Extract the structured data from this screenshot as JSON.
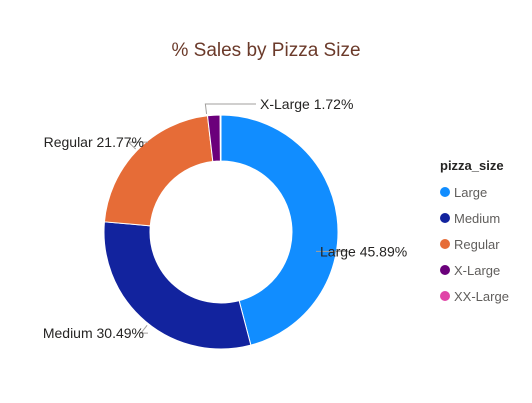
{
  "chart_data": {
    "type": "donut",
    "title": "% Sales by Pizza Size",
    "legend_title": "pizza_size",
    "legend_position": "right",
    "slices": [
      {
        "label": "Large",
        "value": 45.89,
        "display": "45.89%",
        "color": "#118dff"
      },
      {
        "label": "Medium",
        "value": 30.49,
        "display": "30.49%",
        "color": "#12239e"
      },
      {
        "label": "Regular",
        "value": 21.77,
        "display": "21.77%",
        "color": "#e66c37"
      },
      {
        "label": "X-Large",
        "value": 1.72,
        "display": "1.72%",
        "color": "#6b007b"
      },
      {
        "label": "XX-Large",
        "value": 0.12,
        "display": "",
        "color": "#e044a7"
      }
    ]
  }
}
